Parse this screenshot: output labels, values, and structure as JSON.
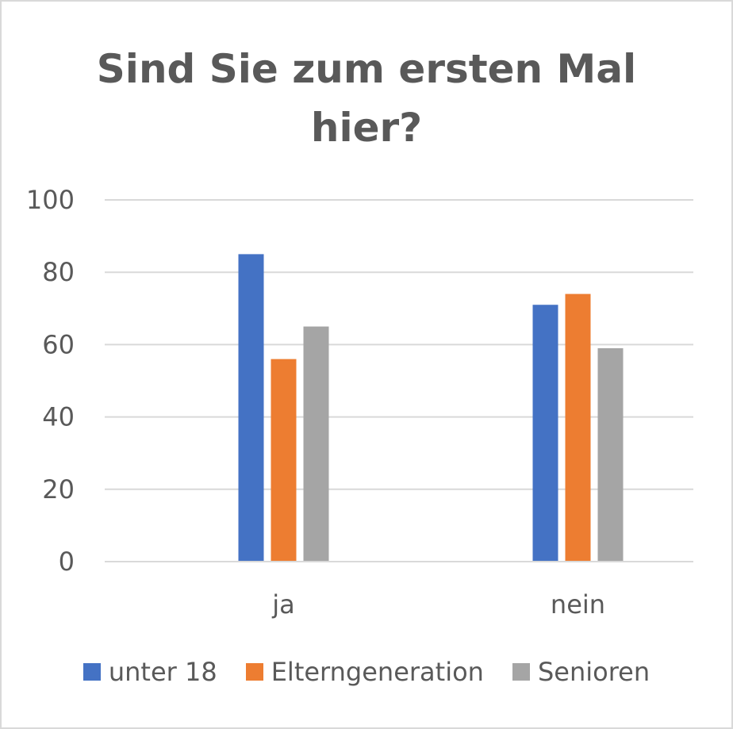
{
  "chart_data": {
    "type": "bar",
    "title_lines": [
      "Sind Sie zum ersten Mal",
      "hier?"
    ],
    "categories": [
      "ja",
      "nein"
    ],
    "series": [
      {
        "name": "unter 18",
        "color": "#4472c4",
        "values": [
          85,
          71
        ]
      },
      {
        "name": "Elterngeneration",
        "color": "#ed7d31",
        "values": [
          56,
          74
        ]
      },
      {
        "name": "Senioren",
        "color": "#a5a5a5",
        "values": [
          65,
          59
        ]
      }
    ],
    "ylim": [
      0,
      100
    ],
    "yticks": [
      0,
      20,
      40,
      60,
      80,
      100
    ],
    "grid": true,
    "gridColor": "#d9d9d9",
    "legend_position": "bottom"
  }
}
